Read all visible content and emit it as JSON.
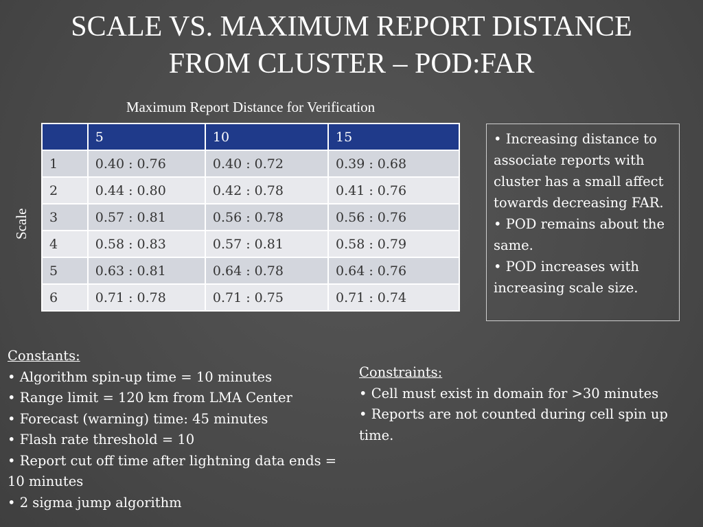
{
  "title": {
    "line1": "SCALE VS. MAXIMUM REPORT DISTANCE",
    "line2": "FROM CLUSTER – POD:FAR"
  },
  "table": {
    "caption": "Maximum Report Distance for Verification",
    "row_axis_label": "Scale",
    "headers": [
      "",
      "5",
      "10",
      "15"
    ],
    "rows": [
      [
        "1",
        "0.40 : 0.76",
        "0.40 : 0.72",
        "0.39 : 0.68"
      ],
      [
        "2",
        "0.44 : 0.80",
        "0.42 : 0.78",
        "0.41 : 0.76"
      ],
      [
        "3",
        "0.57 : 0.81",
        "0.56 : 0.78",
        "0.56 : 0.76"
      ],
      [
        "4",
        "0.58 : 0.83",
        "0.57 : 0.81",
        "0.58 : 0.79"
      ],
      [
        "5",
        "0.63 : 0.81",
        "0.64 : 0.78",
        "0.64 : 0.76"
      ],
      [
        "6",
        "0.71 : 0.78",
        "0.71 : 0.75",
        "0.71 : 0.74"
      ]
    ]
  },
  "notes": [
    "• Increasing distance to associate reports with cluster has a small affect towards decreasing FAR.",
    "• POD remains about the same.",
    "• POD increases with increasing scale size."
  ],
  "constants": {
    "heading": "Constants:",
    "items": [
      "• Algorithm spin-up time = 10 minutes",
      "• Range limit = 120 km from LMA Center",
      "• Forecast (warning) time: 45 minutes",
      "• Flash rate threshold = 10",
      "• Report cut off time after lightning data ends = 10 minutes",
      "• 2 sigma jump algorithm"
    ]
  },
  "constraints": {
    "heading": "Constraints:",
    "items": [
      "•  Cell must exist in domain for >30 minutes",
      "• Reports are not counted during cell spin up time."
    ]
  },
  "colors": {
    "background": "#4b4b4b",
    "header_blue": "#1f3a8a",
    "row_light": "#e8e9ed",
    "row_dark": "#d3d6dd"
  }
}
